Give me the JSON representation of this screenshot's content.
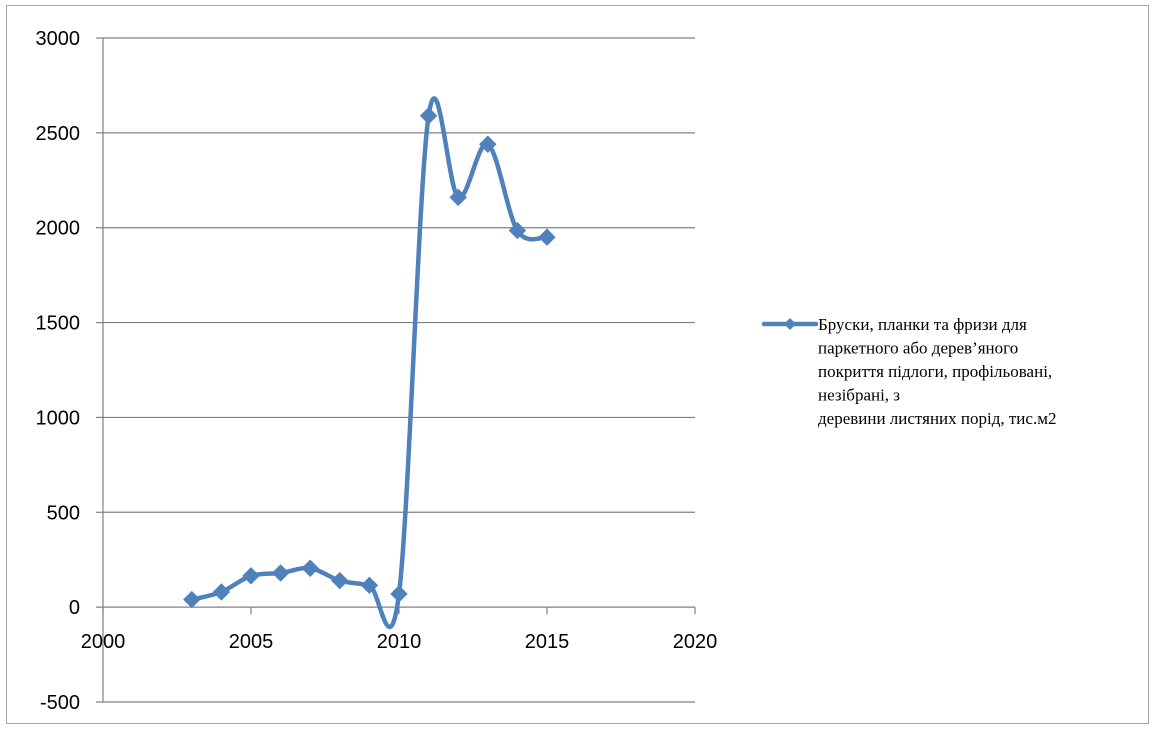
{
  "colors": {
    "series": "#4F81BD",
    "grid": "#808080",
    "axis": "#808080",
    "text": "#000000"
  },
  "chart_data": {
    "type": "scatter",
    "title": "",
    "xlabel": "",
    "ylabel": "",
    "xlim": [
      2000,
      2020
    ],
    "ylim": [
      -500,
      3000
    ],
    "x_ticks": [
      2000,
      2005,
      2010,
      2015,
      2020
    ],
    "y_ticks": [
      -500,
      0,
      500,
      1000,
      1500,
      2000,
      2500,
      3000
    ],
    "grid": "horizontal",
    "smooth_line": true,
    "legend_position": "right",
    "series": [
      {
        "name": "Бруски, планки та фризи для паркетного або дерев’яного покриття підлоги, профільовані, незібрані, з деревини листяних порід, тис.м2",
        "name_lines": [
          "Бруски, планки та фризи для",
          "паркетного або дерев’яного",
          "покриття підлоги, профільовані,",
          "незібрані, з",
          "деревини листяних порід, тис.м2"
        ],
        "x": [
          2003,
          2004,
          2005,
          2006,
          2007,
          2008,
          2009,
          2010,
          2011,
          2012,
          2013,
          2014,
          2015
        ],
        "y": [
          40,
          80,
          165,
          180,
          205,
          140,
          115,
          70,
          2590,
          2160,
          2440,
          1985,
          1950
        ]
      }
    ]
  }
}
